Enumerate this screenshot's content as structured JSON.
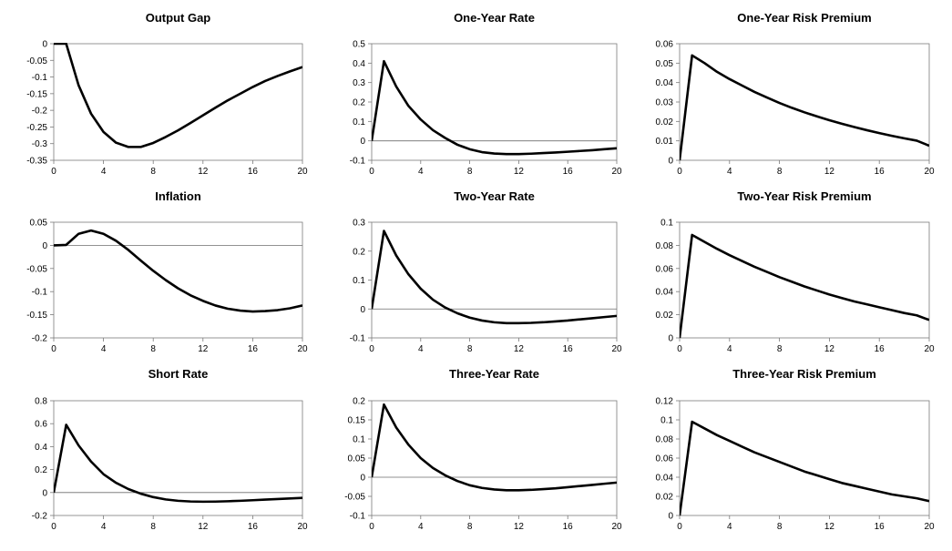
{
  "chart_data": [
    {
      "type": "line",
      "title": "Output Gap",
      "xlabel": "",
      "ylabel": "",
      "xlim": [
        0,
        20
      ],
      "ylim": [
        -0.35,
        0
      ],
      "xticks": [
        0,
        4,
        8,
        12,
        16,
        20
      ],
      "yticks": [
        0,
        -0.05,
        -0.1,
        -0.15,
        -0.2,
        -0.25,
        -0.3,
        -0.35
      ],
      "x": [
        0,
        1,
        2,
        3,
        4,
        5,
        6,
        7,
        8,
        9,
        10,
        11,
        12,
        13,
        14,
        15,
        16,
        17,
        18,
        19,
        20
      ],
      "y": [
        0.0,
        0.0,
        -0.125,
        -0.21,
        -0.265,
        -0.297,
        -0.31,
        -0.31,
        -0.298,
        -0.28,
        -0.26,
        -0.238,
        -0.215,
        -0.192,
        -0.17,
        -0.15,
        -0.13,
        -0.112,
        -0.097,
        -0.083,
        -0.07
      ],
      "zero_line": false,
      "grid": false
    },
    {
      "type": "line",
      "title": "One-Year Rate",
      "xlabel": "",
      "ylabel": "",
      "xlim": [
        0,
        20
      ],
      "ylim": [
        -0.1,
        0.5
      ],
      "xticks": [
        0,
        4,
        8,
        12,
        16,
        20
      ],
      "yticks": [
        0.5,
        0.4,
        0.3,
        0.2,
        0.1,
        0,
        -0.1
      ],
      "x": [
        0,
        1,
        2,
        3,
        4,
        5,
        6,
        7,
        8,
        9,
        10,
        11,
        12,
        13,
        14,
        15,
        16,
        17,
        18,
        19,
        20
      ],
      "y": [
        0.0,
        0.41,
        0.28,
        0.18,
        0.11,
        0.055,
        0.015,
        -0.02,
        -0.043,
        -0.058,
        -0.065,
        -0.068,
        -0.068,
        -0.066,
        -0.063,
        -0.06,
        -0.056,
        -0.052,
        -0.048,
        -0.043,
        -0.038
      ],
      "zero_line": true,
      "grid": false
    },
    {
      "type": "line",
      "title": "One-Year Risk Premium",
      "xlabel": "",
      "ylabel": "",
      "xlim": [
        0,
        20
      ],
      "ylim": [
        0,
        0.06
      ],
      "xticks": [
        0,
        4,
        8,
        12,
        16,
        20
      ],
      "yticks": [
        0.06,
        0.05,
        0.04,
        0.03,
        0.02,
        0.01,
        0
      ],
      "x": [
        0,
        1,
        2,
        3,
        4,
        5,
        6,
        7,
        8,
        9,
        10,
        11,
        12,
        13,
        14,
        15,
        16,
        17,
        18,
        19,
        20
      ],
      "y": [
        0.0,
        0.054,
        0.05,
        0.0455,
        0.0418,
        0.0385,
        0.0352,
        0.0323,
        0.0295,
        0.027,
        0.0247,
        0.0226,
        0.0206,
        0.0188,
        0.0171,
        0.0155,
        0.014,
        0.0126,
        0.0113,
        0.0101,
        0.0075
      ],
      "zero_line": false,
      "grid": false
    },
    {
      "type": "line",
      "title": "Inflation",
      "xlabel": "",
      "ylabel": "",
      "xlim": [
        0,
        20
      ],
      "ylim": [
        -0.2,
        0.05
      ],
      "xticks": [
        0,
        4,
        8,
        12,
        16,
        20
      ],
      "yticks": [
        0.05,
        0,
        -0.05,
        -0.1,
        -0.15,
        -0.2
      ],
      "x": [
        0,
        1,
        2,
        3,
        4,
        5,
        6,
        7,
        8,
        9,
        10,
        11,
        12,
        13,
        14,
        15,
        16,
        17,
        18,
        19,
        20
      ],
      "y": [
        0.0,
        0.001,
        0.025,
        0.032,
        0.025,
        0.01,
        -0.01,
        -0.033,
        -0.055,
        -0.075,
        -0.093,
        -0.108,
        -0.12,
        -0.13,
        -0.137,
        -0.141,
        -0.143,
        -0.142,
        -0.14,
        -0.136,
        -0.13
      ],
      "zero_line": true,
      "grid": false
    },
    {
      "type": "line",
      "title": "Two-Year Rate",
      "xlabel": "",
      "ylabel": "",
      "xlim": [
        0,
        20
      ],
      "ylim": [
        -0.1,
        0.3
      ],
      "xticks": [
        0,
        4,
        8,
        12,
        16,
        20
      ],
      "yticks": [
        0.3,
        0.2,
        0.1,
        0,
        -0.1
      ],
      "x": [
        0,
        1,
        2,
        3,
        4,
        5,
        6,
        7,
        8,
        9,
        10,
        11,
        12,
        13,
        14,
        15,
        16,
        17,
        18,
        19,
        20
      ],
      "y": [
        0.0,
        0.27,
        0.185,
        0.12,
        0.07,
        0.032,
        0.005,
        -0.015,
        -0.03,
        -0.04,
        -0.046,
        -0.049,
        -0.049,
        -0.048,
        -0.046,
        -0.043,
        -0.04,
        -0.036,
        -0.032,
        -0.028,
        -0.024
      ],
      "zero_line": true,
      "grid": false
    },
    {
      "type": "line",
      "title": "Two-Year Risk Premium",
      "xlabel": "",
      "ylabel": "",
      "xlim": [
        0,
        20
      ],
      "ylim": [
        0,
        0.1
      ],
      "xticks": [
        0,
        4,
        8,
        12,
        16,
        20
      ],
      "yticks": [
        0.1,
        0.08,
        0.06,
        0.04,
        0.02,
        0
      ],
      "x": [
        0,
        1,
        2,
        3,
        4,
        5,
        6,
        7,
        8,
        9,
        10,
        11,
        12,
        13,
        14,
        15,
        16,
        17,
        18,
        19,
        20
      ],
      "y": [
        0.0,
        0.089,
        0.083,
        0.077,
        0.0715,
        0.0665,
        0.0615,
        0.057,
        0.0525,
        0.0485,
        0.0445,
        0.041,
        0.0375,
        0.0345,
        0.0315,
        0.029,
        0.0265,
        0.024,
        0.0215,
        0.0195,
        0.0155
      ],
      "zero_line": false,
      "grid": false
    },
    {
      "type": "line",
      "title": "Short Rate",
      "xlabel": "",
      "ylabel": "",
      "xlim": [
        0,
        20
      ],
      "ylim": [
        -0.2,
        0.8
      ],
      "xticks": [
        0,
        4,
        8,
        12,
        16,
        20
      ],
      "yticks": [
        0.8,
        0.6,
        0.4,
        0.2,
        0,
        -0.2
      ],
      "x": [
        0,
        1,
        2,
        3,
        4,
        5,
        6,
        7,
        8,
        9,
        10,
        11,
        12,
        13,
        14,
        15,
        16,
        17,
        18,
        19,
        20
      ],
      "y": [
        0.0,
        0.59,
        0.41,
        0.27,
        0.16,
        0.085,
        0.03,
        -0.01,
        -0.04,
        -0.06,
        -0.072,
        -0.078,
        -0.08,
        -0.079,
        -0.076,
        -0.072,
        -0.067,
        -0.062,
        -0.057,
        -0.052,
        -0.047
      ],
      "zero_line": true,
      "grid": false
    },
    {
      "type": "line",
      "title": "Three-Year Rate",
      "xlabel": "",
      "ylabel": "",
      "xlim": [
        0,
        20
      ],
      "ylim": [
        -0.1,
        0.2
      ],
      "xticks": [
        0,
        4,
        8,
        12,
        16,
        20
      ],
      "yticks": [
        0.2,
        0.15,
        0.1,
        0.05,
        0,
        -0.05,
        -0.1
      ],
      "x": [
        0,
        1,
        2,
        3,
        4,
        5,
        6,
        7,
        8,
        9,
        10,
        11,
        12,
        13,
        14,
        15,
        16,
        17,
        18,
        19,
        20
      ],
      "y": [
        0.0,
        0.19,
        0.13,
        0.085,
        0.05,
        0.024,
        0.005,
        -0.01,
        -0.021,
        -0.028,
        -0.032,
        -0.034,
        -0.034,
        -0.033,
        -0.031,
        -0.029,
        -0.026,
        -0.023,
        -0.02,
        -0.017,
        -0.014
      ],
      "zero_line": true,
      "grid": false
    },
    {
      "type": "line",
      "title": "Three-Year Risk Premium",
      "xlabel": "",
      "ylabel": "",
      "xlim": [
        0,
        20
      ],
      "ylim": [
        0,
        0.12
      ],
      "xticks": [
        0,
        4,
        8,
        12,
        16,
        20
      ],
      "yticks": [
        0.12,
        0.1,
        0.08,
        0.06,
        0.04,
        0.02,
        0
      ],
      "x": [
        0,
        1,
        2,
        3,
        4,
        5,
        6,
        7,
        8,
        9,
        10,
        11,
        12,
        13,
        14,
        15,
        16,
        17,
        18,
        19,
        20
      ],
      "y": [
        0.0,
        0.098,
        0.091,
        0.084,
        0.078,
        0.072,
        0.066,
        0.061,
        0.056,
        0.051,
        0.046,
        0.042,
        0.038,
        0.034,
        0.031,
        0.028,
        0.025,
        0.022,
        0.02,
        0.018,
        0.015
      ],
      "zero_line": false,
      "grid": false
    }
  ]
}
